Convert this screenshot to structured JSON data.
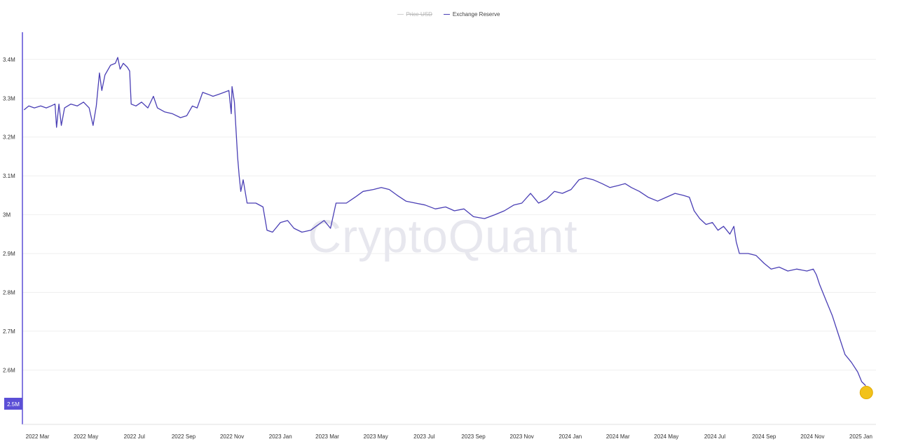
{
  "legend": {
    "price": "Price USD",
    "reserve": "Exchange Reserve"
  },
  "watermark": "CryptoQuant",
  "colors": {
    "line": "#4a3fb5",
    "axis": "#5b4fd6",
    "grid": "#efefef",
    "price_muted": "#c8c8c8",
    "badge": "#5b4fd6",
    "endpoint": "#f2c21b"
  },
  "chart_data": {
    "type": "line",
    "title": "",
    "xlabel": "",
    "ylabel": "",
    "ylim": [
      2.46,
      3.47
    ],
    "yticks": [
      {
        "value": 3.4,
        "label": "3.4M"
      },
      {
        "value": 3.3,
        "label": "3.3M"
      },
      {
        "value": 3.2,
        "label": "3.2M"
      },
      {
        "value": 3.1,
        "label": "3.1M"
      },
      {
        "value": 3.0,
        "label": "3M"
      },
      {
        "value": 2.9,
        "label": "2.9M"
      },
      {
        "value": 2.8,
        "label": "2.8M"
      },
      {
        "value": 2.7,
        "label": "2.7M"
      },
      {
        "value": 2.6,
        "label": "2.6M"
      }
    ],
    "xlim": [
      "2022-02-10",
      "2025-01-20"
    ],
    "xticks": [
      {
        "date": "2022-03-01",
        "label": "2022 Mar"
      },
      {
        "date": "2022-05-01",
        "label": "2022 May"
      },
      {
        "date": "2022-07-01",
        "label": "2022 Jul"
      },
      {
        "date": "2022-09-01",
        "label": "2022 Sep"
      },
      {
        "date": "2022-11-01",
        "label": "2022 Nov"
      },
      {
        "date": "2023-01-01",
        "label": "2023 Jan"
      },
      {
        "date": "2023-03-01",
        "label": "2023 Mar"
      },
      {
        "date": "2023-05-01",
        "label": "2023 May"
      },
      {
        "date": "2023-07-01",
        "label": "2023 Jul"
      },
      {
        "date": "2023-09-01",
        "label": "2023 Sep"
      },
      {
        "date": "2023-11-01",
        "label": "2023 Nov"
      },
      {
        "date": "2024-01-01",
        "label": "2024 Jan"
      },
      {
        "date": "2024-03-01",
        "label": "2024 Mar"
      },
      {
        "date": "2024-05-01",
        "label": "2024 May"
      },
      {
        "date": "2024-07-01",
        "label": "2024 Jul"
      },
      {
        "date": "2024-09-01",
        "label": "2024 Sep"
      },
      {
        "date": "2024-11-01",
        "label": "2024 Nov"
      },
      {
        "date": "2025-01-01",
        "label": "2025 Jan"
      }
    ],
    "series": [
      {
        "name": "Exchange Reserve",
        "unit": "M",
        "points": [
          [
            "2022-02-12",
            3.27
          ],
          [
            "2022-02-18",
            3.28
          ],
          [
            "2022-02-25",
            3.275
          ],
          [
            "2022-03-05",
            3.28
          ],
          [
            "2022-03-12",
            3.275
          ],
          [
            "2022-03-18",
            3.28
          ],
          [
            "2022-03-23",
            3.285
          ],
          [
            "2022-03-25",
            3.225
          ],
          [
            "2022-03-28",
            3.285
          ],
          [
            "2022-03-31",
            3.23
          ],
          [
            "2022-04-04",
            3.275
          ],
          [
            "2022-04-12",
            3.285
          ],
          [
            "2022-04-20",
            3.28
          ],
          [
            "2022-04-28",
            3.29
          ],
          [
            "2022-05-05",
            3.275
          ],
          [
            "2022-05-10",
            3.23
          ],
          [
            "2022-05-14",
            3.28
          ],
          [
            "2022-05-18",
            3.365
          ],
          [
            "2022-05-21",
            3.32
          ],
          [
            "2022-05-25",
            3.36
          ],
          [
            "2022-06-01",
            3.385
          ],
          [
            "2022-06-07",
            3.39
          ],
          [
            "2022-06-10",
            3.405
          ],
          [
            "2022-06-13",
            3.375
          ],
          [
            "2022-06-17",
            3.39
          ],
          [
            "2022-06-22",
            3.38
          ],
          [
            "2022-06-25",
            3.37
          ],
          [
            "2022-06-27",
            3.285
          ],
          [
            "2022-07-03",
            3.28
          ],
          [
            "2022-07-10",
            3.29
          ],
          [
            "2022-07-18",
            3.275
          ],
          [
            "2022-07-25",
            3.305
          ],
          [
            "2022-07-30",
            3.275
          ],
          [
            "2022-08-08",
            3.265
          ],
          [
            "2022-08-18",
            3.26
          ],
          [
            "2022-08-28",
            3.25
          ],
          [
            "2022-09-05",
            3.255
          ],
          [
            "2022-09-12",
            3.28
          ],
          [
            "2022-09-18",
            3.275
          ],
          [
            "2022-09-25",
            3.315
          ],
          [
            "2022-10-02",
            3.31
          ],
          [
            "2022-10-08",
            3.305
          ],
          [
            "2022-10-15",
            3.31
          ],
          [
            "2022-10-22",
            3.315
          ],
          [
            "2022-10-28",
            3.32
          ],
          [
            "2022-10-31",
            3.26
          ],
          [
            "2022-11-01",
            3.33
          ],
          [
            "2022-11-04",
            3.29
          ],
          [
            "2022-11-08",
            3.15
          ],
          [
            "2022-11-10",
            3.1
          ],
          [
            "2022-11-12",
            3.06
          ],
          [
            "2022-11-15",
            3.09
          ],
          [
            "2022-11-20",
            3.03
          ],
          [
            "2022-12-01",
            3.03
          ],
          [
            "2022-12-10",
            3.02
          ],
          [
            "2022-12-15",
            2.96
          ],
          [
            "2022-12-22",
            2.955
          ],
          [
            "2023-01-01",
            2.98
          ],
          [
            "2023-01-10",
            2.985
          ],
          [
            "2023-01-18",
            2.965
          ],
          [
            "2023-01-28",
            2.955
          ],
          [
            "2023-02-08",
            2.96
          ],
          [
            "2023-02-18",
            2.975
          ],
          [
            "2023-02-25",
            2.985
          ],
          [
            "2023-03-05",
            2.965
          ],
          [
            "2023-03-12",
            3.03
          ],
          [
            "2023-03-25",
            3.03
          ],
          [
            "2023-04-05",
            3.045
          ],
          [
            "2023-04-15",
            3.06
          ],
          [
            "2023-04-28",
            3.065
          ],
          [
            "2023-05-08",
            3.07
          ],
          [
            "2023-05-18",
            3.065
          ],
          [
            "2023-05-28",
            3.05
          ],
          [
            "2023-06-08",
            3.035
          ],
          [
            "2023-06-20",
            3.03
          ],
          [
            "2023-07-02",
            3.025
          ],
          [
            "2023-07-15",
            3.015
          ],
          [
            "2023-07-28",
            3.02
          ],
          [
            "2023-08-08",
            3.01
          ],
          [
            "2023-08-20",
            3.015
          ],
          [
            "2023-09-01",
            2.995
          ],
          [
            "2023-09-15",
            2.99
          ],
          [
            "2023-09-28",
            3.0
          ],
          [
            "2023-10-10",
            3.01
          ],
          [
            "2023-10-22",
            3.025
          ],
          [
            "2023-11-01",
            3.03
          ],
          [
            "2023-11-12",
            3.055
          ],
          [
            "2023-11-22",
            3.03
          ],
          [
            "2023-12-02",
            3.04
          ],
          [
            "2023-12-12",
            3.06
          ],
          [
            "2023-12-22",
            3.055
          ],
          [
            "2024-01-02",
            3.065
          ],
          [
            "2024-01-12",
            3.09
          ],
          [
            "2024-01-20",
            3.095
          ],
          [
            "2024-01-30",
            3.09
          ],
          [
            "2024-02-10",
            3.08
          ],
          [
            "2024-02-20",
            3.07
          ],
          [
            "2024-03-01",
            3.075
          ],
          [
            "2024-03-10",
            3.08
          ],
          [
            "2024-03-18",
            3.07
          ],
          [
            "2024-03-28",
            3.06
          ],
          [
            "2024-04-08",
            3.045
          ],
          [
            "2024-04-20",
            3.035
          ],
          [
            "2024-05-01",
            3.045
          ],
          [
            "2024-05-12",
            3.055
          ],
          [
            "2024-05-22",
            3.05
          ],
          [
            "2024-05-30",
            3.045
          ],
          [
            "2024-06-05",
            3.01
          ],
          [
            "2024-06-12",
            2.99
          ],
          [
            "2024-06-20",
            2.975
          ],
          [
            "2024-06-28",
            2.98
          ],
          [
            "2024-07-05",
            2.96
          ],
          [
            "2024-07-12",
            2.97
          ],
          [
            "2024-07-20",
            2.95
          ],
          [
            "2024-07-25",
            2.97
          ],
          [
            "2024-07-28",
            2.93
          ],
          [
            "2024-08-01",
            2.9
          ],
          [
            "2024-08-12",
            2.9
          ],
          [
            "2024-08-22",
            2.895
          ],
          [
            "2024-09-01",
            2.875
          ],
          [
            "2024-09-10",
            2.86
          ],
          [
            "2024-09-20",
            2.865
          ],
          [
            "2024-10-01",
            2.855
          ],
          [
            "2024-10-12",
            2.86
          ],
          [
            "2024-10-25",
            2.855
          ],
          [
            "2024-11-02",
            2.86
          ],
          [
            "2024-11-06",
            2.845
          ],
          [
            "2024-11-10",
            2.82
          ],
          [
            "2024-11-18",
            2.78
          ],
          [
            "2024-11-26",
            2.74
          ],
          [
            "2024-12-04",
            2.69
          ],
          [
            "2024-12-12",
            2.64
          ],
          [
            "2024-12-20",
            2.62
          ],
          [
            "2024-12-28",
            2.595
          ],
          [
            "2025-01-02",
            2.57
          ],
          [
            "2025-01-07",
            2.56
          ]
        ]
      }
    ],
    "last_value_label": "2.5M",
    "last_value": 2.55,
    "grid": true,
    "legend_position": "top-center"
  }
}
